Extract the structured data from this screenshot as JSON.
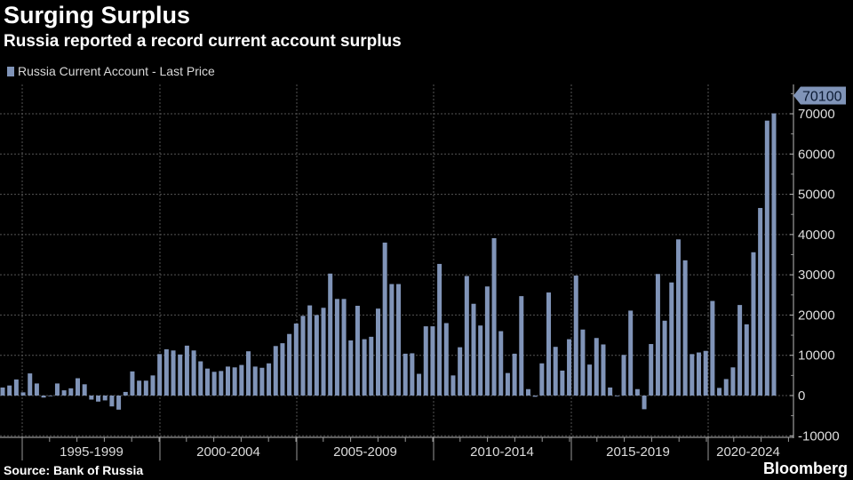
{
  "chart_data": {
    "type": "bar",
    "title": "Surging Surplus",
    "subtitle": "Russia reported a record current account surplus",
    "series": [
      {
        "name": "Russia Current Account - Last Price",
        "values": [
          2000,
          2500,
          4000,
          800,
          5500,
          3000,
          -500,
          0,
          3000,
          1300,
          1800,
          4300,
          2800,
          -1000,
          -1500,
          -1200,
          -2700,
          -3500,
          900,
          6000,
          3700,
          3700,
          5000,
          10300,
          11500,
          11200,
          10200,
          12400,
          11200,
          8500,
          6700,
          5900,
          6100,
          7200,
          7000,
          7600,
          11000,
          7200,
          6900,
          8000,
          12300,
          13000,
          15300,
          17900,
          19800,
          22400,
          20000,
          21800,
          30300,
          24000,
          24000,
          13700,
          22300,
          14000,
          14600,
          21600,
          38000,
          27700,
          27700,
          10400,
          10500,
          5400,
          17200,
          17200,
          32700,
          18000,
          5000,
          12000,
          29700,
          22800,
          17400,
          27100,
          39100,
          16000,
          5600,
          10400,
          24700,
          1600,
          -300,
          8000,
          25600,
          12100,
          6200,
          14000,
          29800,
          16400,
          7700,
          14300,
          12700,
          2000,
          0,
          10100,
          21100,
          1600,
          -3400,
          12800,
          30200,
          18600,
          28100,
          38800,
          33600,
          10300,
          10700,
          11100,
          23500,
          1900,
          4100,
          7000,
          22500,
          17700,
          35600,
          46600,
          68300,
          70100
        ]
      }
    ],
    "categories_labels": [
      "1995-1999",
      "2000-2004",
      "2005-2009",
      "2010-2014",
      "2015-2019",
      "2020-2024"
    ],
    "yticks": [
      "-10000",
      "0",
      "10000",
      "20000",
      "30000",
      "40000",
      "50000",
      "60000",
      "70000"
    ],
    "ylim": [
      -10000,
      75000
    ],
    "last_value_label": "70100",
    "xlabel": "",
    "ylabel": "",
    "grid": true,
    "legend": "top-left",
    "color": "#8094b8"
  },
  "source": "Source: Bank of Russia",
  "brand": "Bloomberg"
}
